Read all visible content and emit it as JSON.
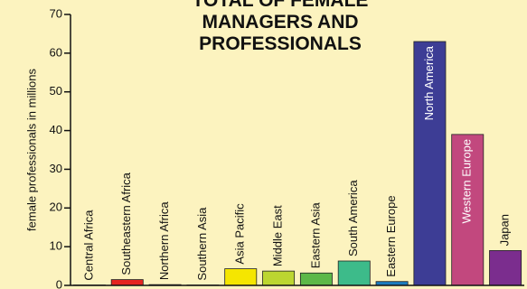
{
  "chart_data": {
    "type": "bar",
    "title": "TOTAL OF FEMALE MANAGERS AND PROFESSIONALS",
    "y_label": "female professionals in millions",
    "categories": [
      "Central Africa",
      "Southeastern Africa",
      "Northern Africa",
      "Southern Asia",
      "Asia Pacific",
      "Middle East",
      "Eastern Asia",
      "South America",
      "Eastern Europe",
      "North America",
      "Western Europe",
      "Japan"
    ],
    "values": [
      0.1,
      1.5,
      0.2,
      0.1,
      4.3,
      3.7,
      3.2,
      6.3,
      1,
      63,
      39,
      9
    ],
    "colors": [
      "#9b1c20",
      "#e52421",
      "#ef7d22",
      "#f6b21b",
      "#f5e600",
      "#bcd630",
      "#5cb848",
      "#3dbb8a",
      "#1b7bbf",
      "#3d3d95",
      "#c2487e",
      "#7b2d8e"
    ],
    "ylim": [
      0,
      70
    ],
    "yticks": [
      0,
      10,
      20,
      30,
      40,
      50,
      60,
      70
    ]
  }
}
